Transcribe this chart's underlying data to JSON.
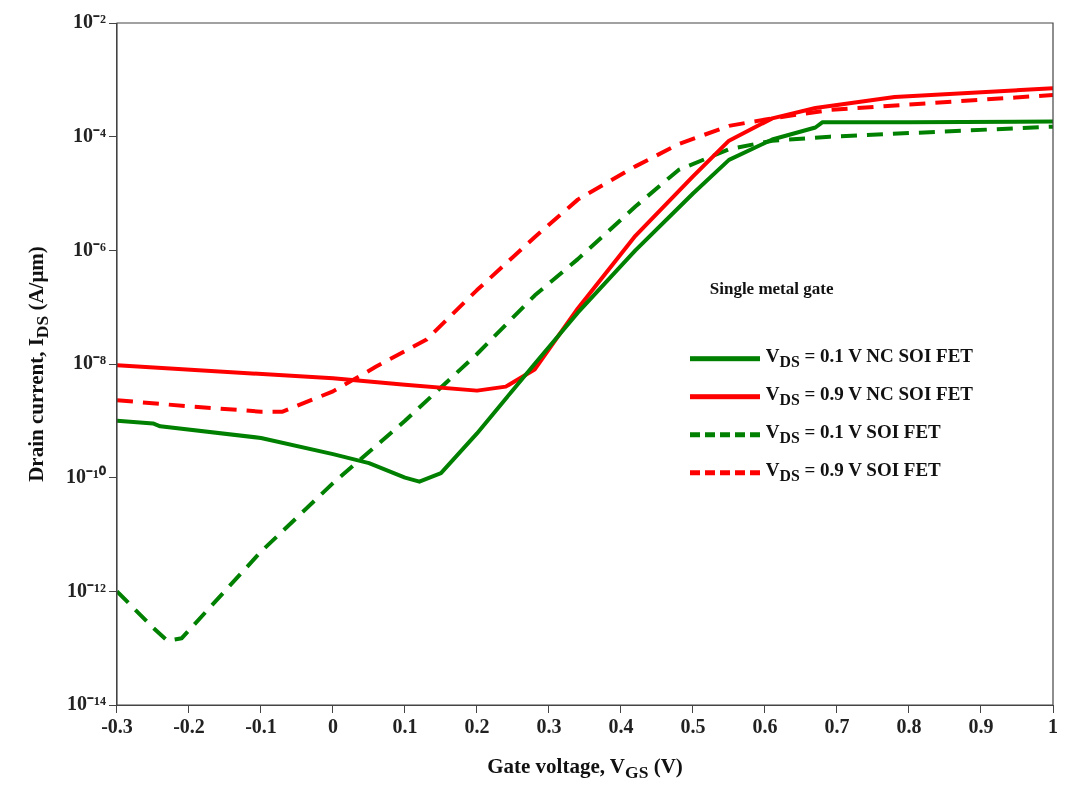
{
  "chart_data": {
    "type": "line",
    "xlabel": "Gate voltage, V$_{GS}$ (V)",
    "ylabel": "Drain current, I$_{DS}$ (A/μm)",
    "annotations": [
      "Single metal gate"
    ],
    "log": "y",
    "grid": false,
    "legend": "right",
    "marker": "none",
    "xlim": [
      -0.3,
      1
    ],
    "xticks": [
      -0.3,
      -0.2,
      -0.1,
      0,
      0.1,
      0.2,
      0.3,
      0.4,
      0.5,
      0.6,
      0.7,
      0.8,
      0.9,
      1
    ],
    "ylim": [
      1e-14,
      0.01
    ],
    "yticks": [
      {
        "value": 1e-14,
        "label": "10⁻¹⁴"
      },
      {
        "value": 1e-12,
        "label": "10⁻¹²"
      },
      {
        "value": 1e-10,
        "label": "10⁻¹⁰"
      },
      {
        "value": 1e-08,
        "label": "10⁻⁸"
      },
      {
        "value": 1e-06,
        "label": "10⁻⁶"
      },
      {
        "value": 0.0001,
        "label": "10⁻⁴"
      },
      {
        "value": 0.01,
        "label": "10⁻²"
      }
    ],
    "series": [
      {
        "name": "V$_{DS}$ = 0.1 V NC SOI FET",
        "color": "#008000",
        "line_style": "solid",
        "x": [
          -0.3,
          -0.25,
          -0.24,
          -0.1,
          0,
          0.05,
          0.1,
          0.12,
          0.15,
          0.2,
          0.25,
          0.28,
          0.34,
          0.42,
          0.5,
          0.55,
          0.61,
          0.67,
          0.68,
          0.8,
          1.0
        ],
        "values": [
          1e-09,
          9e-10,
          8e-10,
          5e-10,
          2.6e-10,
          1.8e-10,
          1e-10,
          8.5e-11,
          1.2e-10,
          6e-10,
          3.5e-09,
          1e-08,
          8e-08,
          1e-06,
          1e-05,
          3.9e-05,
          8.9e-05,
          0.000145,
          0.00018,
          0.00018,
          0.000185
        ]
      },
      {
        "name": "V$_{DS}$ = 0.9 V NC SOI FET",
        "color": "#ff0000",
        "line_style": "solid",
        "x": [
          -0.3,
          0,
          0.1,
          0.2,
          0.24,
          0.28,
          0.34,
          0.42,
          0.5,
          0.55,
          0.61,
          0.67,
          0.78,
          1.0
        ],
        "values": [
          9.5e-09,
          5.6e-09,
          4.3e-09,
          3.4e-09,
          4e-09,
          8e-09,
          9.5e-08,
          1.8e-06,
          2e-05,
          8.5e-05,
          0.00021,
          0.00032,
          0.0005,
          0.00071
        ]
      },
      {
        "name": "V$_{DS}$ = 0.1 V SOI FET",
        "color": "#008000",
        "line_style": "dashed",
        "x": [
          -0.3,
          -0.25,
          -0.23,
          -0.21,
          -0.1,
          0,
          0.1,
          0.2,
          0.28,
          0.34,
          0.42,
          0.48,
          0.55,
          0.61,
          0.69,
          1.0
        ],
        "values": [
          1e-12,
          2.3e-13,
          1.35e-13,
          1.5e-13,
          5e-12,
          8e-11,
          1e-09,
          1.5e-08,
          1.6e-07,
          7e-07,
          5.9e-06,
          2.6e-05,
          6e-05,
          8.5e-05,
          0.0001,
          0.00015
        ]
      },
      {
        "name": "V$_{DS}$ = 0.9 V  SOI FET",
        "color": "#ff0000",
        "line_style": "dashed",
        "x": [
          -0.3,
          -0.2,
          -0.1,
          -0.07,
          0,
          0.06,
          0.13,
          0.2,
          0.28,
          0.34,
          0.42,
          0.48,
          0.55,
          0.61,
          0.69,
          0.83,
          1.0
        ],
        "values": [
          2.3e-09,
          1.8e-09,
          1.45e-09,
          1.45e-09,
          3.3e-09,
          9e-09,
          2.7e-08,
          2e-07,
          1.7e-06,
          7.8e-06,
          3e-05,
          7.4e-05,
          0.000155,
          0.00021,
          0.000295,
          0.00039,
          0.00054
        ]
      }
    ]
  }
}
